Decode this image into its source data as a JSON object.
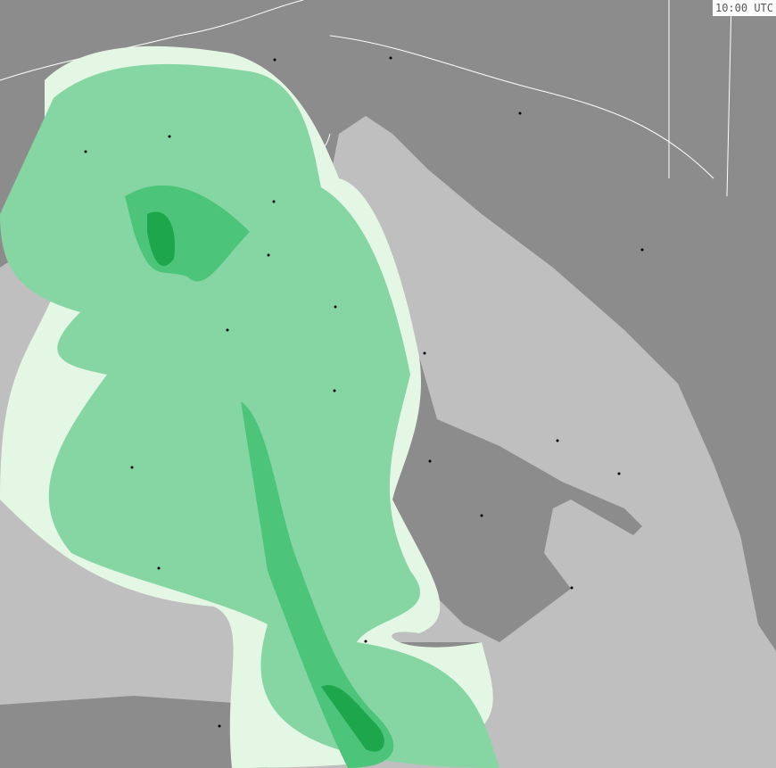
{
  "map": {
    "time_label": "10:00 UTC",
    "colors": {
      "sea": "#bfbfbf",
      "land": "#8c8c8c",
      "borders": "#ffffff",
      "precip_trace": "#e4f7e4",
      "precip_light": "#86d6a4",
      "precip_moderate": "#4cc47a",
      "precip_heavy": "#1ea64c"
    }
  }
}
